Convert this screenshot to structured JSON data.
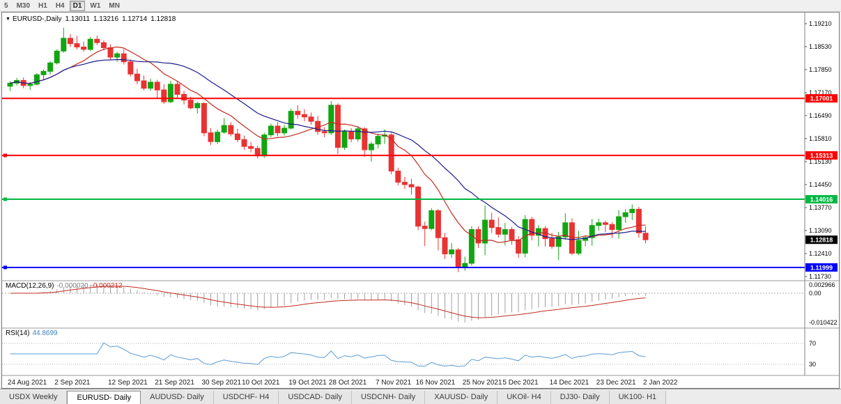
{
  "toolbar": {
    "timeframes": [
      {
        "label": "5",
        "active": false
      },
      {
        "label": "M30",
        "active": false
      },
      {
        "label": "H1",
        "active": false
      },
      {
        "label": "H4",
        "active": false
      },
      {
        "label": "D1",
        "active": true
      },
      {
        "label": "W1",
        "active": false
      },
      {
        "label": "MN",
        "active": false
      }
    ]
  },
  "chart": {
    "title": "EURUSD-,Daily",
    "open": "1.13011",
    "high": "1.13216",
    "low": "1.12714",
    "close": "1.12818"
  },
  "chart_data": {
    "type": "candlestick",
    "symbol": "EURUSD-",
    "timeframe": "Daily",
    "colors": {
      "up": "#12a512",
      "down": "#e93232",
      "macd_hist": "#9e9e9e",
      "macd_signal": "#c22a1e",
      "rsi": "#5b9bd5"
    },
    "price_axis": {
      "ticks": [
        "1.19210",
        "1.18530",
        "1.17850",
        "1.17170",
        "1.16490",
        "1.15810",
        "1.15130",
        "1.14450",
        "1.13770",
        "1.13090",
        "1.12410",
        "1.11730"
      ]
    },
    "hlines": [
      {
        "name": "resistance-line-1",
        "label": "1.17001",
        "value": 1.17001,
        "color": "#ff0000",
        "handle": false
      },
      {
        "name": "resistance-line-2",
        "label": "1.15313",
        "value": 1.15313,
        "color": "#ff0000",
        "handle": true
      },
      {
        "name": "resistance-line-3",
        "label": "1.14016",
        "value": 1.14016,
        "color": "#00b843",
        "handle": true
      },
      {
        "name": "support-line",
        "label": "1.11999",
        "value": 1.11999,
        "color": "#0000ff",
        "handle": true
      }
    ],
    "current_price": {
      "label": "1.12818",
      "value": 1.12818,
      "bg": "#000000"
    },
    "moving_averages": [
      {
        "name": "ma-fast-line",
        "period": 10,
        "color": "#c22a1e"
      },
      {
        "name": "ma-slow-line",
        "period": 20,
        "color": "#1a1a8c"
      }
    ],
    "indicators": {
      "macd": {
        "label": "MACD(12,26,9)",
        "value_main": "-0.000020",
        "value_signal": "-0.000212",
        "fast": 12,
        "slow": 26,
        "signal": 9,
        "axis": [
          "0.002966",
          "0.00",
          "-0.010422"
        ]
      },
      "rsi": {
        "label": "RSI(14)",
        "value": "44.8699",
        "period": 14,
        "levels": [
          70,
          30
        ]
      }
    },
    "date_labels": [
      {
        "label": "24 Aug 2021",
        "i": 0
      },
      {
        "label": "2 Sep 2021",
        "i": 7
      },
      {
        "label": "12 Sep 2021",
        "i": 15
      },
      {
        "label": "21 Sep 2021",
        "i": 22
      },
      {
        "label": "30 Sep 2021",
        "i": 29
      },
      {
        "label": "10 Oct 2021",
        "i": 35
      },
      {
        "label": "19 Oct 2021",
        "i": 42
      },
      {
        "label": "28 Oct 2021",
        "i": 48
      },
      {
        "label": "7 Nov 2021",
        "i": 55
      },
      {
        "label": "16 Nov 2021",
        "i": 61
      },
      {
        "label": "25 Nov 2021",
        "i": 68
      },
      {
        "label": "5 Dec 2021",
        "i": 74
      },
      {
        "label": "14 Dec 2021",
        "i": 81
      },
      {
        "label": "23 Dec 2021",
        "i": 88
      },
      {
        "label": "2 Jan 2022",
        "i": 95
      }
    ],
    "candles": [
      [
        1.1736,
        1.175,
        1.1722,
        1.1745
      ],
      [
        1.1745,
        1.176,
        1.1738,
        1.1753
      ],
      [
        1.1753,
        1.1762,
        1.173,
        1.1738
      ],
      [
        1.1738,
        1.1748,
        1.1725,
        1.1742
      ],
      [
        1.1742,
        1.1775,
        1.1738,
        1.177
      ],
      [
        1.177,
        1.1785,
        1.1755,
        1.178
      ],
      [
        1.178,
        1.181,
        1.177,
        1.1805
      ],
      [
        1.1805,
        1.1845,
        1.18,
        1.184
      ],
      [
        1.184,
        1.1909,
        1.1835,
        1.1878
      ],
      [
        1.1878,
        1.189,
        1.1852,
        1.1862
      ],
      [
        1.1862,
        1.1885,
        1.1845,
        1.1852
      ],
      [
        1.1852,
        1.1868,
        1.1838,
        1.1845
      ],
      [
        1.1845,
        1.1882,
        1.184,
        1.1875
      ],
      [
        1.1875,
        1.1886,
        1.1858,
        1.1865
      ],
      [
        1.1865,
        1.1872,
        1.1842,
        1.185
      ],
      [
        1.185,
        1.186,
        1.1815,
        1.1822
      ],
      [
        1.1822,
        1.1838,
        1.1808,
        1.1832
      ],
      [
        1.1832,
        1.1846,
        1.18,
        1.1808
      ],
      [
        1.1808,
        1.1815,
        1.1765,
        1.1772
      ],
      [
        1.1772,
        1.1788,
        1.1742,
        1.1752
      ],
      [
        1.1752,
        1.1768,
        1.1724,
        1.173
      ],
      [
        1.173,
        1.1758,
        1.1722,
        1.1748
      ],
      [
        1.1748,
        1.1755,
        1.17,
        1.1725
      ],
      [
        1.1725,
        1.1742,
        1.1684,
        1.169
      ],
      [
        1.169,
        1.1752,
        1.1686,
        1.1742
      ],
      [
        1.1742,
        1.175,
        1.1702,
        1.1712
      ],
      [
        1.1712,
        1.1722,
        1.1682,
        1.1695
      ],
      [
        1.1695,
        1.1705,
        1.1668,
        1.1672
      ],
      [
        1.1672,
        1.169,
        1.1655,
        1.1685
      ],
      [
        1.1685,
        1.1688,
        1.1588,
        1.1598
      ],
      [
        1.1598,
        1.1612,
        1.1562,
        1.1572
      ],
      [
        1.1572,
        1.1608,
        1.1565,
        1.16
      ],
      [
        1.16,
        1.1642,
        1.1595,
        1.162
      ],
      [
        1.162,
        1.163,
        1.1588,
        1.1595
      ],
      [
        1.1595,
        1.161,
        1.157,
        1.1578
      ],
      [
        1.1578,
        1.159,
        1.1548,
        1.1558
      ],
      [
        1.1558,
        1.1572,
        1.154,
        1.1552
      ],
      [
        1.1552,
        1.156,
        1.1522,
        1.153
      ],
      [
        1.153,
        1.1598,
        1.1524,
        1.1592
      ],
      [
        1.1592,
        1.1625,
        1.1585,
        1.1618
      ],
      [
        1.1618,
        1.163,
        1.1588,
        1.1598
      ],
      [
        1.1598,
        1.1622,
        1.159,
        1.1612
      ],
      [
        1.1612,
        1.167,
        1.1608,
        1.1662
      ],
      [
        1.1662,
        1.168,
        1.164,
        1.1652
      ],
      [
        1.1652,
        1.1668,
        1.1632,
        1.1645
      ],
      [
        1.1645,
        1.1658,
        1.1622,
        1.1632
      ],
      [
        1.1632,
        1.1648,
        1.1592,
        1.1602
      ],
      [
        1.1602,
        1.1615,
        1.1585,
        1.1598
      ],
      [
        1.1598,
        1.1692,
        1.1592,
        1.168
      ],
      [
        1.168,
        1.1685,
        1.1535,
        1.1555
      ],
      [
        1.1555,
        1.1608,
        1.1548,
        1.1602
      ],
      [
        1.1602,
        1.1612,
        1.157,
        1.158
      ],
      [
        1.158,
        1.1618,
        1.1572,
        1.161
      ],
      [
        1.161,
        1.1615,
        1.1527,
        1.1548
      ],
      [
        1.1548,
        1.1572,
        1.1513,
        1.1565
      ],
      [
        1.1565,
        1.1596,
        1.1552,
        1.1588
      ],
      [
        1.1588,
        1.1608,
        1.1565,
        1.1592
      ],
      [
        1.1592,
        1.1598,
        1.1475,
        1.1485
      ],
      [
        1.1485,
        1.1495,
        1.1443,
        1.1452
      ],
      [
        1.1452,
        1.1468,
        1.1432,
        1.1445
      ],
      [
        1.1445,
        1.1462,
        1.1415,
        1.1438
      ],
      [
        1.1438,
        1.1442,
        1.131,
        1.1322
      ],
      [
        1.1322,
        1.1335,
        1.1263,
        1.1315
      ],
      [
        1.1315,
        1.1375,
        1.131,
        1.1368
      ],
      [
        1.1368,
        1.1372,
        1.125,
        1.1288
      ],
      [
        1.1288,
        1.1302,
        1.1225,
        1.124
      ],
      [
        1.124,
        1.1272,
        1.1228,
        1.1252
      ],
      [
        1.1252,
        1.1258,
        1.1186,
        1.1202
      ],
      [
        1.1202,
        1.1232,
        1.119,
        1.1212
      ],
      [
        1.1212,
        1.1322,
        1.1205,
        1.1312
      ],
      [
        1.1312,
        1.1322,
        1.1258,
        1.1272
      ],
      [
        1.1272,
        1.1383,
        1.1236,
        1.134
      ],
      [
        1.134,
        1.1362,
        1.1302,
        1.1318
      ],
      [
        1.1318,
        1.1348,
        1.1288,
        1.1298
      ],
      [
        1.1298,
        1.1332,
        1.1265,
        1.1312
      ],
      [
        1.1312,
        1.132,
        1.1267,
        1.1282
      ],
      [
        1.1282,
        1.1292,
        1.1228,
        1.1242
      ],
      [
        1.1242,
        1.1355,
        1.123,
        1.1342
      ],
      [
        1.1342,
        1.135,
        1.128,
        1.1295
      ],
      [
        1.1295,
        1.1325,
        1.1262,
        1.1315
      ],
      [
        1.1315,
        1.1322,
        1.1262,
        1.1285
      ],
      [
        1.1285,
        1.1302,
        1.1255,
        1.1262
      ],
      [
        1.1262,
        1.1305,
        1.1222,
        1.129
      ],
      [
        1.129,
        1.136,
        1.1282,
        1.1332
      ],
      [
        1.1332,
        1.1345,
        1.1236,
        1.1242
      ],
      [
        1.1242,
        1.1308,
        1.1236,
        1.128
      ],
      [
        1.128,
        1.1295,
        1.1262,
        1.1288
      ],
      [
        1.1288,
        1.1343,
        1.1264,
        1.1324
      ],
      [
        1.1324,
        1.1344,
        1.1308,
        1.1332
      ],
      [
        1.1332,
        1.1338,
        1.1304,
        1.1327
      ],
      [
        1.1327,
        1.1334,
        1.1287,
        1.1312
      ],
      [
        1.1312,
        1.137,
        1.1285,
        1.135
      ],
      [
        1.135,
        1.1372,
        1.1332,
        1.1362
      ],
      [
        1.1362,
        1.1386,
        1.134,
        1.1372
      ],
      [
        1.1372,
        1.1379,
        1.1288,
        1.1302
      ],
      [
        1.13011,
        1.13216,
        1.12714,
        1.12818
      ]
    ]
  },
  "tabs": [
    {
      "label": "USDX Weekly",
      "active": false
    },
    {
      "label": "EURUSD- Daily",
      "active": true
    },
    {
      "label": "AUDUSD- Daily",
      "active": false
    },
    {
      "label": "USDCHF- H4",
      "active": false
    },
    {
      "label": "USDCAD- Daily",
      "active": false
    },
    {
      "label": "USDCNH- Daily",
      "active": false
    },
    {
      "label": "XAUUSD- Daily",
      "active": false
    },
    {
      "label": "UKOil- H4",
      "active": false
    },
    {
      "label": "DJ30- Daily",
      "active": false
    },
    {
      "label": "UK100- H1",
      "active": false
    }
  ]
}
